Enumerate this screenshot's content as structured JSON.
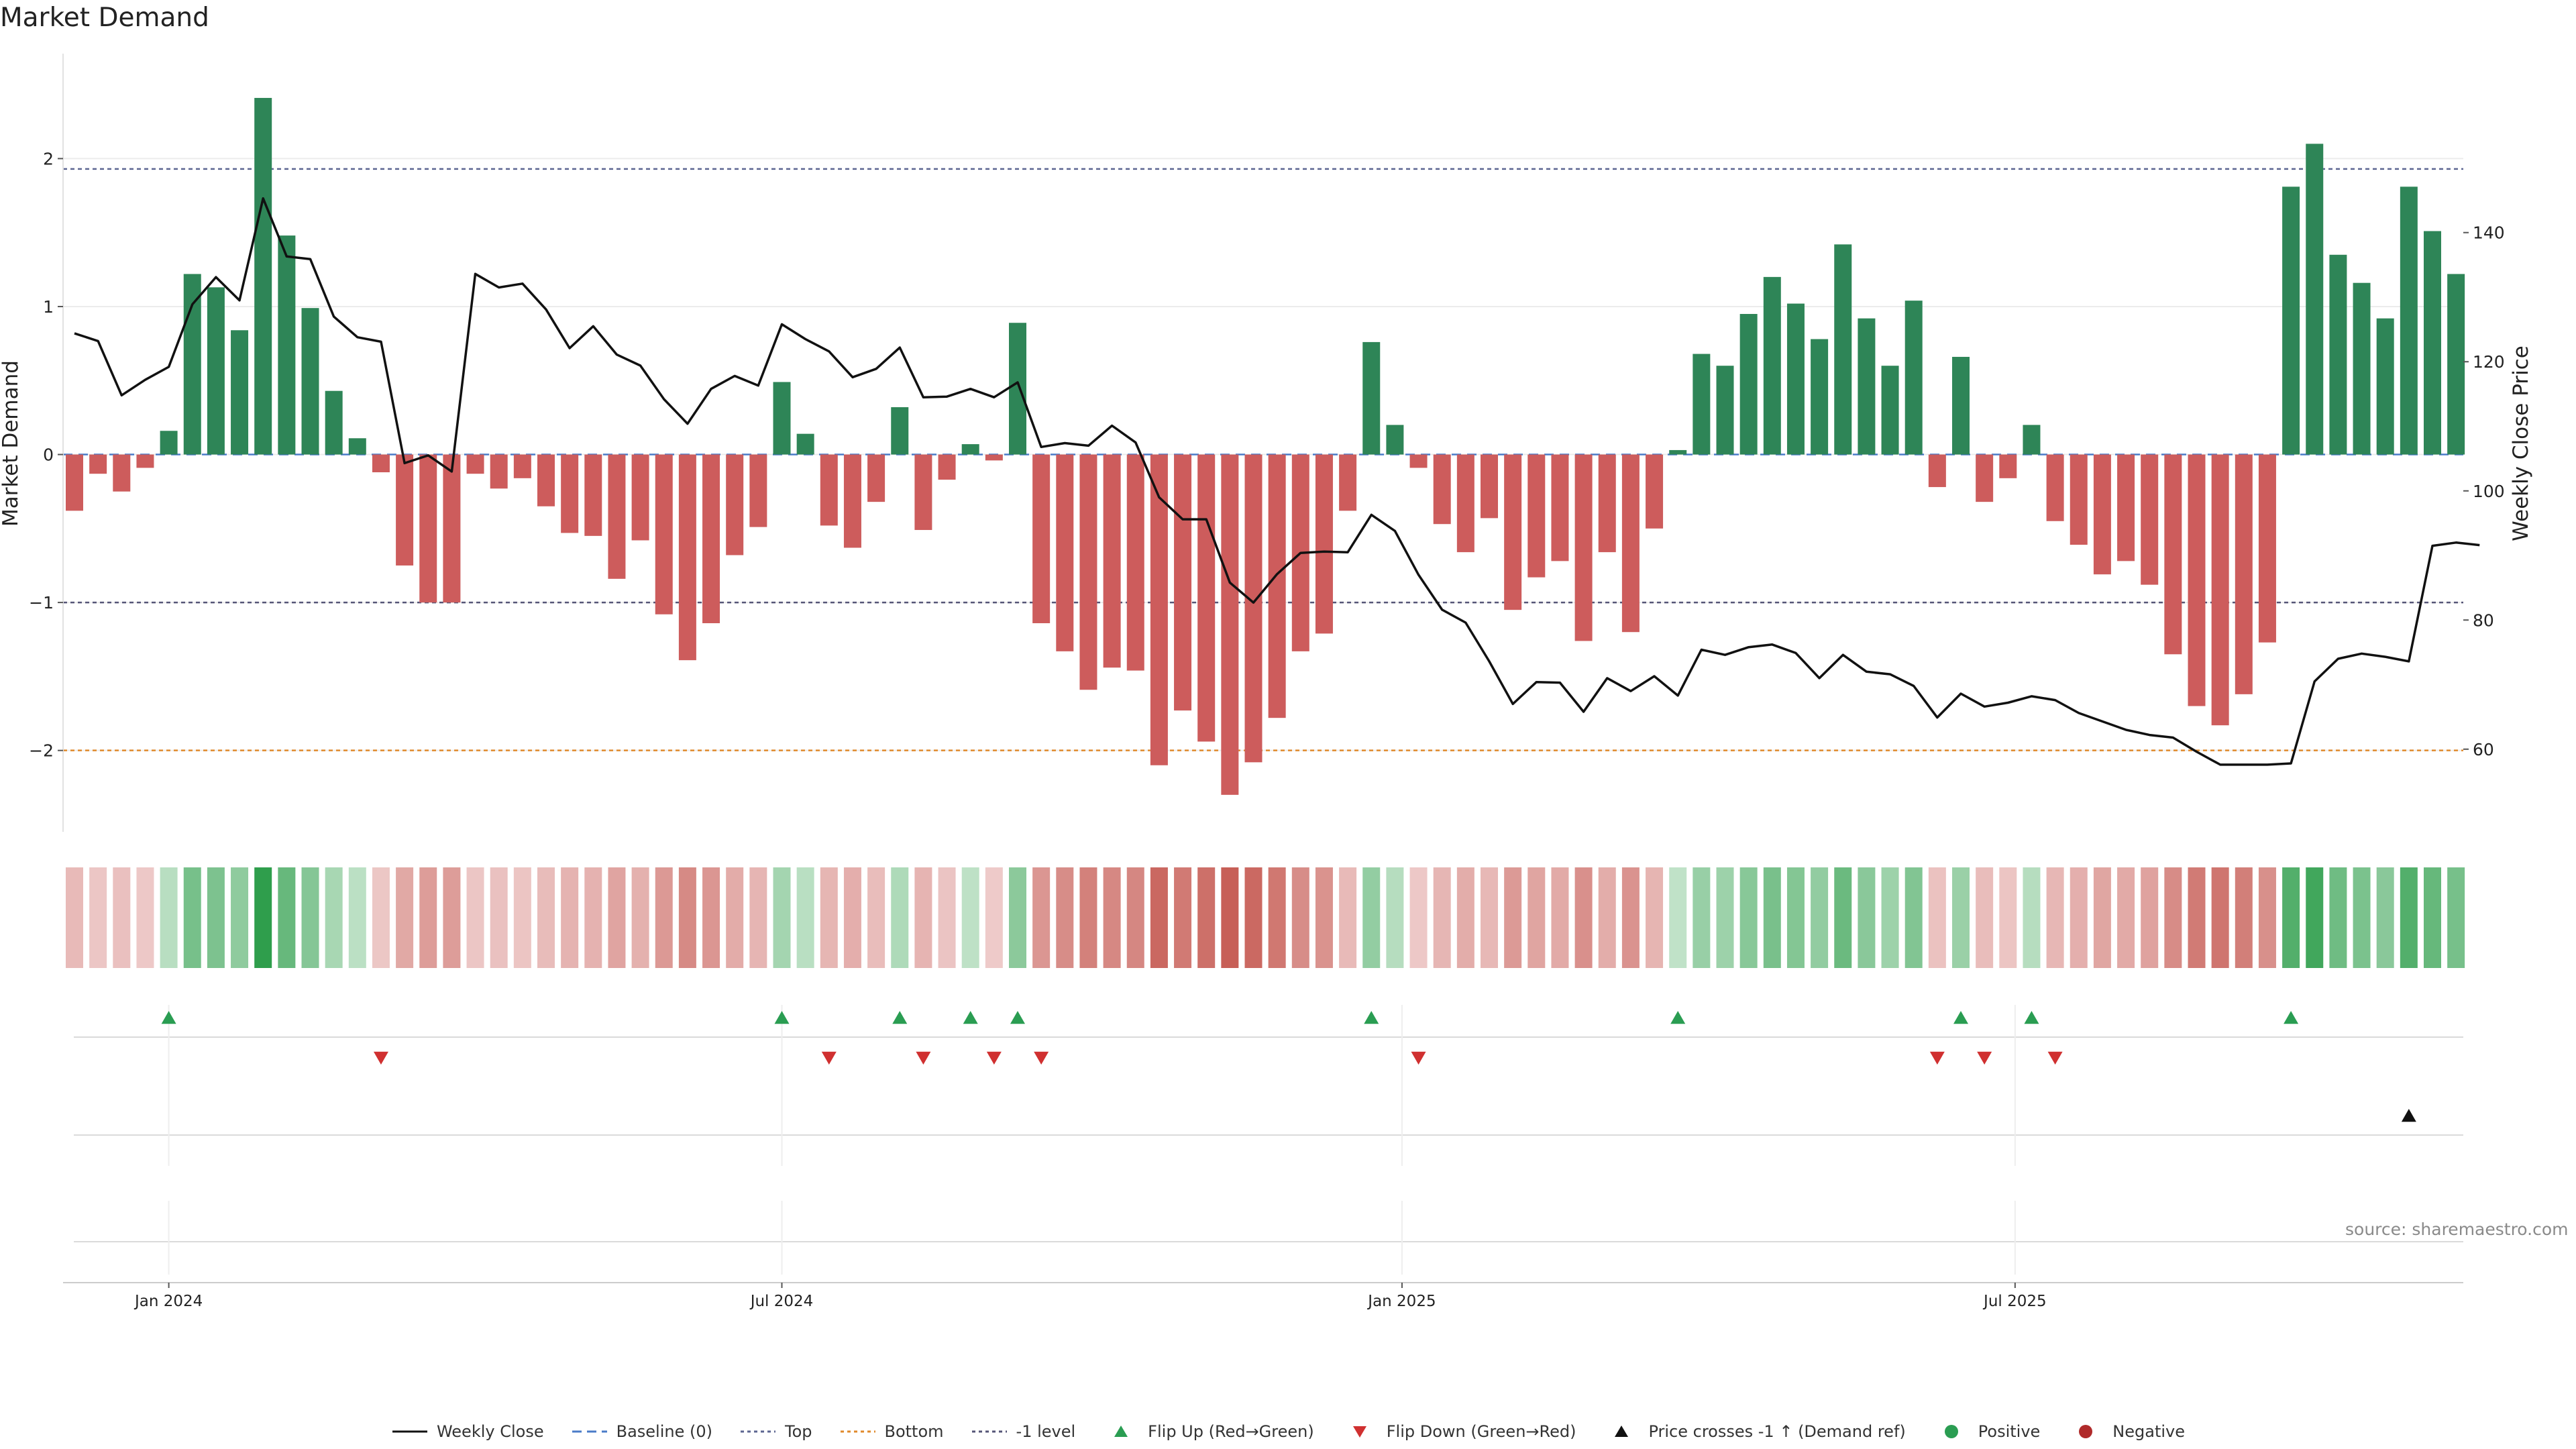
{
  "title": "Market Demand",
  "source": "source: sharemaestro.com",
  "colors": {
    "positive_bar": "#2e8557",
    "negative_bar": "#cd5c5c",
    "close_line": "#111111",
    "top_line": "#5d6691",
    "bottom_line": "#e08a2c",
    "minus1_line": "#555577",
    "baseline": "#4a7bc8",
    "flip_up": "#2a9d52",
    "flip_down": "#d03030",
    "price_cross": "#111111"
  },
  "chart_data": {
    "type": "bar+line",
    "ylabel_left": "Market Demand",
    "ylabel_right": "Weekly Close Price",
    "ylim_left": [
      -2.55,
      2.7
    ],
    "ylim_right": [
      47.2,
      167.5
    ],
    "yticks_left": [
      -2,
      -1,
      0,
      1,
      2
    ],
    "yticks_right": [
      60,
      80,
      100,
      120,
      140
    ],
    "top_level": 1.93,
    "bottom_level": -2.0,
    "minus1_level": -1.0,
    "baseline": 0,
    "x_tick_labels": [
      {
        "label": "Jan 2024",
        "index": 4
      },
      {
        "label": "Jul 2024",
        "index": 30
      },
      {
        "label": "Jan 2025",
        "index": 56.3
      },
      {
        "label": "Jul 2025",
        "index": 82.3
      }
    ],
    "demand": [
      -0.38,
      -0.13,
      -0.25,
      -0.09,
      0.16,
      1.22,
      1.13,
      0.84,
      2.41,
      1.48,
      0.99,
      0.43,
      0.11,
      -0.12,
      -0.75,
      -1.0,
      -1.0,
      -0.13,
      -0.23,
      -0.16,
      -0.35,
      -0.53,
      -0.55,
      -0.84,
      -0.58,
      -1.08,
      -1.39,
      -1.14,
      -0.68,
      -0.49,
      0.49,
      0.14,
      -0.48,
      -0.63,
      -0.32,
      0.32,
      -0.51,
      -0.17,
      0.07,
      -0.04,
      0.89,
      -1.14,
      -1.33,
      -1.59,
      -1.44,
      -1.46,
      -2.1,
      -1.73,
      -1.94,
      -2.3,
      -2.08,
      -1.78,
      -1.33,
      -1.21,
      -0.38,
      0.76,
      0.2,
      -0.09,
      -0.47,
      -0.66,
      -0.43,
      -1.05,
      -0.83,
      -0.72,
      -1.26,
      -0.66,
      -1.2,
      -0.5,
      0.03,
      0.68,
      0.6,
      0.95,
      1.2,
      1.02,
      0.78,
      1.42,
      0.92,
      0.6,
      1.04,
      -0.22,
      0.66,
      -0.32,
      -0.16,
      0.2,
      -0.45,
      -0.61,
      -0.81,
      -0.72,
      -0.88,
      -1.35,
      -1.7,
      -1.83,
      -1.62,
      -1.27,
      1.81,
      2.1,
      1.35,
      1.16,
      0.92,
      1.81,
      1.51,
      1.22
    ],
    "weekly_close": [
      124.4,
      123.2,
      114.8,
      117.2,
      119.2,
      128.9,
      133.1,
      129.5,
      145.3,
      136.3,
      135.9,
      127.0,
      123.8,
      123.1,
      104.3,
      105.5,
      103.0,
      133.6,
      131.5,
      132.1,
      128.1,
      122.1,
      125.5,
      121.1,
      119.4,
      114.2,
      110.4,
      115.8,
      117.8,
      116.3,
      125.8,
      123.5,
      121.6,
      117.6,
      118.9,
      122.2,
      114.5,
      114.6,
      115.8,
      114.5,
      116.8,
      106.8,
      107.4,
      107.0,
      110.1,
      107.5,
      99.0,
      95.6,
      95.6,
      85.8,
      82.7,
      87.1,
      90.4,
      90.6,
      90.5,
      96.3,
      93.8,
      87.0,
      81.6,
      79.6,
      73.6,
      67.0,
      70.4,
      70.3,
      65.8,
      71.0,
      69.0,
      71.3,
      68.3,
      75.4,
      74.6,
      75.8,
      76.2,
      74.9,
      71.0,
      74.6,
      72.0,
      71.6,
      69.8,
      64.9,
      68.6,
      66.6,
      67.2,
      68.2,
      67.6,
      65.6,
      64.3,
      63.0,
      62.2,
      61.8,
      59.6,
      57.6,
      57.6,
      57.6,
      57.8,
      70.5,
      74.0,
      74.8,
      74.3,
      73.6,
      91.5,
      92.0,
      91.6
    ],
    "flip_up_indices": [
      4,
      30,
      35,
      38,
      40,
      55,
      68,
      80,
      83,
      94
    ],
    "flip_down_indices": [
      13,
      32,
      36,
      39,
      41,
      57,
      79,
      81,
      84
    ],
    "price_cross_indices": [
      99
    ],
    "legend": [
      "Weekly Close",
      "Baseline (0)",
      "Top",
      "Bottom",
      "-1 level",
      "Flip Up (Red→Green)",
      "Flip Down (Green→Red)",
      "Price crosses -1 ↑ (Demand ref)",
      "Positive",
      "Negative"
    ]
  }
}
